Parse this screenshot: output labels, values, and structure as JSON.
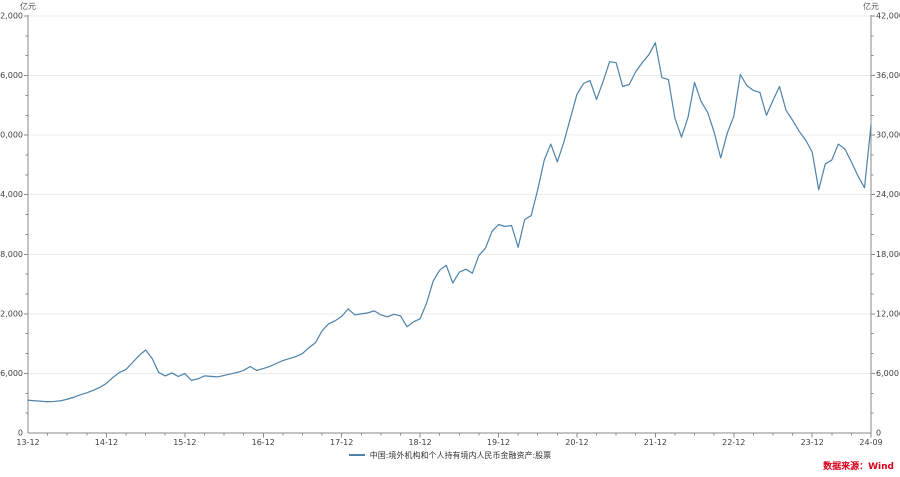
{
  "chart": {
    "unit_left": "亿元",
    "unit_right": "亿元",
    "source_label": "数据来源：Wind",
    "source_color": "#d9001b",
    "background": "#ffffff"
  },
  "chart_data": {
    "type": "line",
    "title": "",
    "legend_position": "bottom-center",
    "grid": "horizontal-major-only",
    "x_frequency": "monthly",
    "x_range": [
      "2013-12",
      "2024-09"
    ],
    "x_tick_labels": [
      "13-12",
      "14-12",
      "15-12",
      "16-12",
      "17-12",
      "18-12",
      "19-12",
      "20-12",
      "21-12",
      "22-12",
      "23-12",
      "24-09"
    ],
    "x_tick_month_index": [
      0,
      12,
      24,
      36,
      48,
      60,
      72,
      84,
      96,
      108,
      120,
      129
    ],
    "x_minor_tick_every_months": 3,
    "ylabel": "亿元",
    "ylim": [
      0,
      42000
    ],
    "y_major_step": 6000,
    "y_minor_step": 2000,
    "y_tick_labels": [
      "0",
      "6,000",
      "12,000",
      "18,000",
      "24,000",
      "30,000",
      "36,000",
      "42,000"
    ],
    "series": [
      {
        "name": "中国:境外机构和个人持有境内人民币金融资产:股票",
        "color": "#4d82ab",
        "values": [
          3300,
          3250,
          3200,
          3150,
          3180,
          3250,
          3400,
          3600,
          3850,
          4050,
          4300,
          4600,
          5000,
          5600,
          6100,
          6400,
          7100,
          7800,
          8360,
          7500,
          6100,
          5750,
          6050,
          5700,
          5986,
          5300,
          5450,
          5750,
          5700,
          5650,
          5800,
          5950,
          6100,
          6300,
          6700,
          6300,
          6492,
          6700,
          7000,
          7300,
          7500,
          7700,
          8000,
          8600,
          9100,
          10300,
          11000,
          11300,
          11750,
          12500,
          11900,
          12000,
          12100,
          12300,
          11900,
          11700,
          11950,
          11800,
          10700,
          11200,
          11500,
          13100,
          15300,
          16400,
          16900,
          15100,
          16200,
          16500,
          16100,
          17900,
          18600,
          20300,
          21000,
          20800,
          20900,
          18700,
          21500,
          21900,
          24500,
          27500,
          29100,
          27300,
          29300,
          31700,
          34100,
          35200,
          35500,
          33600,
          35400,
          37400,
          37300,
          34900,
          35100,
          36400,
          37300,
          38100,
          39300,
          35800,
          35600,
          31700,
          29800,
          31800,
          35300,
          33400,
          32300,
          30300,
          27700,
          30200,
          31900,
          36100,
          35000,
          34500,
          34300,
          32000,
          33500,
          34900,
          32500,
          31500,
          30400,
          29500,
          28300,
          24500,
          27100,
          27500,
          29100,
          28600,
          27300,
          25900,
          24700,
          31000
        ]
      }
    ]
  }
}
